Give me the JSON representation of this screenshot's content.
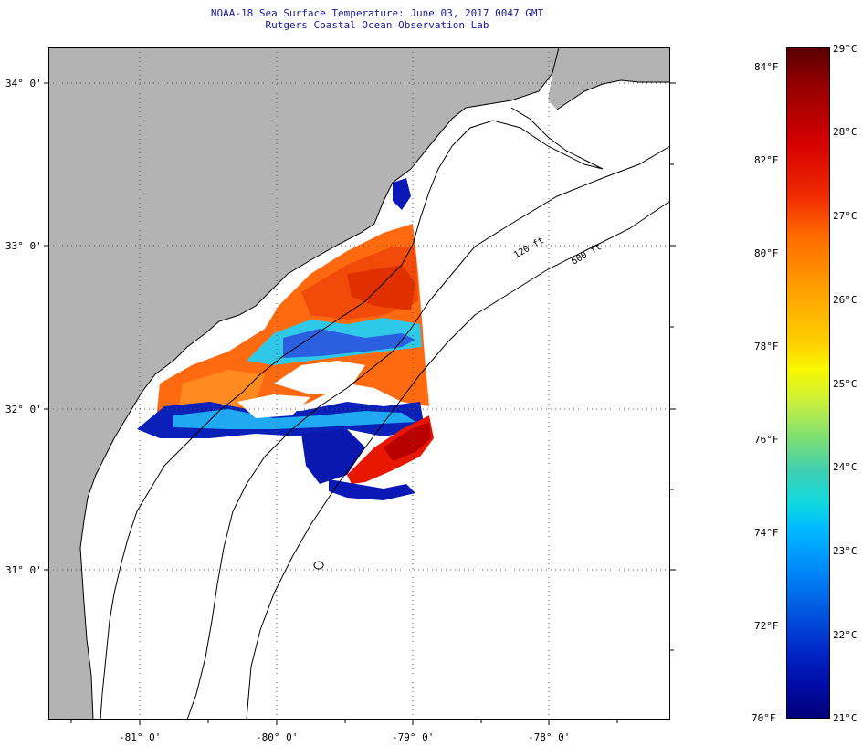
{
  "header": {
    "title_line1": "NOAA-18 Sea Surface Temperature:  June 03, 2017 0047 GMT",
    "title_line2": "Rutgers Coastal Ocean Observation Lab"
  },
  "map": {
    "lat_labels": [
      "34° 0'",
      "33° 0'",
      "32° 0'",
      "31° 0'"
    ],
    "lon_labels": [
      "-81° 0'",
      "-80° 0'",
      "-79° 0'",
      "-78° 0'"
    ],
    "isobath_labels": [
      "120 ft",
      "600 ft"
    ],
    "colors": {
      "land": "#b3b3b3",
      "no_data": "#ffffff",
      "frame": "#000000"
    }
  },
  "colorbar": {
    "fahrenheit_labels": [
      "84°F",
      "82°F",
      "80°F",
      "78°F",
      "76°F",
      "74°F",
      "72°F",
      "70°F"
    ],
    "celsius_labels": [
      "29°C",
      "28°C",
      "27°C",
      "26°C",
      "25°C",
      "24°C",
      "23°C",
      "22°C",
      "21°C"
    ],
    "range_celsius": [
      21,
      29
    ],
    "range_fahrenheit": [
      70,
      84.2
    ]
  }
}
